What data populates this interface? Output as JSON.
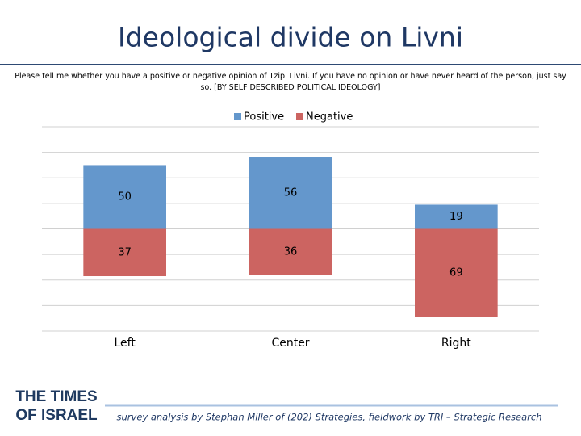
{
  "chart_data": {
    "type": "diverging",
    "title": "Ideological divide on Livni",
    "subtitle": "Please tell me whether you have a positive or negative opinion of Tzipi Livni. If you have no opinion or have never heard of the person, just say so. [BY SELF DESCRIBED POLITICAL IDEOLOGY]",
    "categories": [
      "Left",
      "Center",
      "Right"
    ],
    "series": [
      {
        "name": "Positive",
        "color": "#6497cc",
        "values": [
          50,
          56,
          19
        ]
      },
      {
        "name": "Negative",
        "color": "#cc6461",
        "values": [
          37,
          36,
          69
        ]
      }
    ],
    "ylim": [
      -80,
      80
    ],
    "yticks": [
      -80,
      -60,
      -40,
      -20,
      0,
      20,
      40,
      60,
      80
    ],
    "grid": true,
    "legend": "top"
  },
  "footer": {
    "logo": [
      "THE TIMES",
      "OF ISRAEL"
    ],
    "credit": "survey analysis by Stephan Miller of (202) Strategies, fieldwork by TRI – Strategic Research"
  }
}
